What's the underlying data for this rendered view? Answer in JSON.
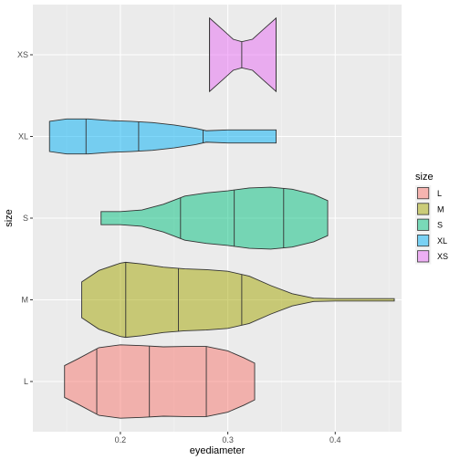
{
  "chart_data": {
    "type": "violin",
    "xlabel": "eyediameter",
    "ylabel": "size",
    "xlim": [
      0.1185,
      0.4618
    ],
    "x_ticks": [
      0.2,
      0.3,
      0.4
    ],
    "x_tick_labels": [
      "0.2",
      "0.3",
      "0.4"
    ],
    "categories": [
      "L",
      "M",
      "S",
      "XL",
      "XS"
    ],
    "grid": true,
    "legend": {
      "title": "size",
      "position": "right",
      "entries": [
        "L",
        "M",
        "S",
        "XL",
        "XS"
      ]
    },
    "colors": {
      "L": "#F8766D",
      "M": "#A3A500",
      "S": "#00BF7D",
      "XL": "#00B0F6",
      "XS": "#E76BF3"
    },
    "fill_alpha": 0.5,
    "series": [
      {
        "name": "L",
        "quantiles": [
          0.178,
          0.227,
          0.28
        ],
        "profile": [
          [
            0.148,
            0.39
          ],
          [
            0.16,
            0.55
          ],
          [
            0.18,
            0.83
          ],
          [
            0.2,
            0.9
          ],
          [
            0.22,
            0.88
          ],
          [
            0.24,
            0.85
          ],
          [
            0.26,
            0.86
          ],
          [
            0.28,
            0.86
          ],
          [
            0.3,
            0.75
          ],
          [
            0.315,
            0.58
          ],
          [
            0.325,
            0.45
          ]
        ]
      },
      {
        "name": "M",
        "quantiles": [
          0.205,
          0.254,
          0.313
        ],
        "profile": [
          [
            0.164,
            0.44
          ],
          [
            0.18,
            0.72
          ],
          [
            0.2,
            0.9
          ],
          [
            0.205,
            0.92
          ],
          [
            0.22,
            0.88
          ],
          [
            0.24,
            0.8
          ],
          [
            0.26,
            0.76
          ],
          [
            0.28,
            0.74
          ],
          [
            0.3,
            0.7
          ],
          [
            0.32,
            0.58
          ],
          [
            0.34,
            0.35
          ],
          [
            0.36,
            0.15
          ],
          [
            0.38,
            0.04
          ],
          [
            0.4,
            0.03
          ],
          [
            0.42,
            0.03
          ],
          [
            0.44,
            0.03
          ],
          [
            0.455,
            0.03
          ]
        ]
      },
      {
        "name": "S",
        "quantiles": [
          0.256,
          0.306,
          0.352
        ],
        "profile": [
          [
            0.182,
            0.16
          ],
          [
            0.2,
            0.16
          ],
          [
            0.22,
            0.2
          ],
          [
            0.24,
            0.34
          ],
          [
            0.26,
            0.54
          ],
          [
            0.28,
            0.62
          ],
          [
            0.3,
            0.67
          ],
          [
            0.32,
            0.74
          ],
          [
            0.34,
            0.76
          ],
          [
            0.36,
            0.71
          ],
          [
            0.38,
            0.58
          ],
          [
            0.393,
            0.43
          ]
        ]
      },
      {
        "name": "XL",
        "quantiles": [
          0.168,
          0.217,
          0.277
        ],
        "profile": [
          [
            0.134,
            0.37
          ],
          [
            0.15,
            0.43
          ],
          [
            0.17,
            0.43
          ],
          [
            0.19,
            0.39
          ],
          [
            0.21,
            0.37
          ],
          [
            0.23,
            0.34
          ],
          [
            0.25,
            0.28
          ],
          [
            0.27,
            0.2
          ],
          [
            0.28,
            0.14
          ],
          [
            0.3,
            0.16
          ],
          [
            0.32,
            0.16
          ],
          [
            0.345,
            0.16
          ]
        ]
      },
      {
        "name": "XS",
        "quantiles": [
          0.283,
          0.313,
          0.345
        ],
        "profile": [
          [
            0.283,
            0.9
          ],
          [
            0.295,
            0.62
          ],
          [
            0.305,
            0.38
          ],
          [
            0.313,
            0.32
          ],
          [
            0.323,
            0.38
          ],
          [
            0.333,
            0.62
          ],
          [
            0.345,
            0.9
          ]
        ]
      }
    ]
  }
}
